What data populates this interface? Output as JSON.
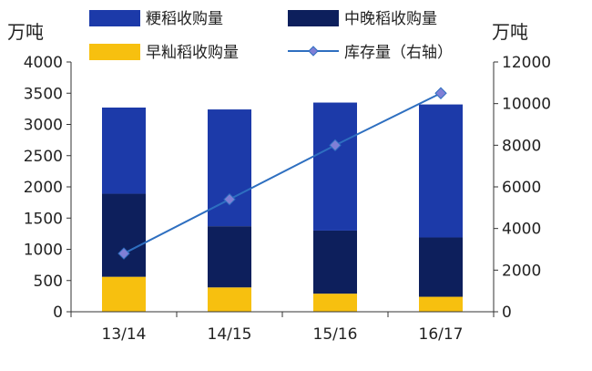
{
  "chart_data": {
    "type": "bar",
    "stacked": true,
    "categories": [
      "13/14",
      "14/15",
      "15/16",
      "16/17"
    ],
    "series": [
      {
        "name": "早籼稻收购量",
        "values": [
          560,
          390,
          290,
          240
        ],
        "color": "#f7c00f",
        "axis": "left"
      },
      {
        "name": "中晚稻收购量",
        "values": [
          1330,
          980,
          1010,
          950
        ],
        "color": "#0d1f5c",
        "axis": "left"
      },
      {
        "name": "粳稻收购量",
        "values": [
          1380,
          1870,
          2050,
          2130
        ],
        "color": "#1c3aa9",
        "axis": "left"
      },
      {
        "name": "库存量（右轴）",
        "type": "line",
        "values": [
          2800,
          5400,
          8000,
          10500
        ],
        "color": "#2e6fc0",
        "marker_color": "#7f7fd6",
        "axis": "right"
      }
    ],
    "y_left": {
      "unit": "万吨",
      "lim": [
        0,
        4000
      ],
      "ticks": [
        0,
        500,
        1000,
        1500,
        2000,
        2500,
        3000,
        3500,
        4000
      ]
    },
    "y_right": {
      "unit": "万吨",
      "lim": [
        0,
        12000
      ],
      "ticks": [
        0,
        2000,
        4000,
        6000,
        8000,
        10000,
        12000
      ]
    },
    "legend": {
      "placement": "top",
      "order": [
        2,
        1,
        0,
        3
      ]
    },
    "grid": false
  }
}
